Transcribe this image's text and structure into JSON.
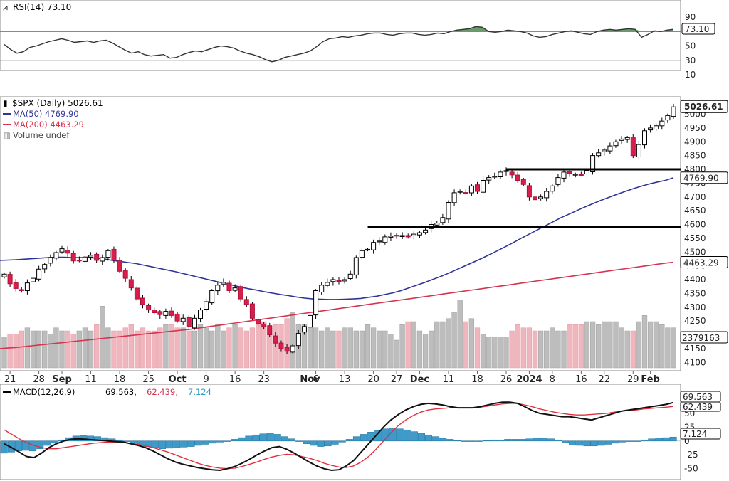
{
  "chart_data": [
    {
      "type": "line",
      "panel": "rsi",
      "legend": "RSI(14) 73.10",
      "last_value_label": "73.10",
      "ylim": [
        10,
        100
      ],
      "yticks": [
        "90",
        "70",
        "50",
        "30",
        "10"
      ],
      "reference_lines": [
        70,
        50,
        30
      ],
      "series": [
        {
          "name": "RSI(14)",
          "values": [
            52,
            45,
            40,
            42,
            48,
            50,
            53,
            56,
            58,
            60,
            58,
            55,
            56,
            57,
            55,
            57,
            58,
            54,
            49,
            44,
            40,
            42,
            38,
            36,
            37,
            38,
            33,
            34,
            38,
            41,
            43,
            42,
            45,
            48,
            50,
            49,
            47,
            43,
            40,
            38,
            35,
            31,
            28,
            30,
            34,
            36,
            38,
            40,
            43,
            49,
            56,
            60,
            61,
            63,
            62,
            64,
            65,
            67,
            68,
            68,
            66,
            65,
            67,
            68,
            68,
            66,
            65,
            66,
            68,
            67,
            70,
            72,
            73,
            74,
            77,
            76,
            70,
            69,
            70,
            72,
            71,
            70,
            68,
            64,
            62,
            63,
            66,
            68,
            70,
            71,
            69,
            67,
            66,
            70,
            72,
            73,
            72,
            73,
            74,
            73,
            62,
            66,
            71,
            70,
            72,
            73.1
          ]
        }
      ]
    },
    {
      "type": "candlestick",
      "panel": "price",
      "title": "$SPX (Daily) 5026.61",
      "last_value_label": "5026.61",
      "legend": [
        {
          "label": "MA(50) 4769.90",
          "color": "#2f3597"
        },
        {
          "label": "MA(200) 4463.29",
          "color": "#d4344f"
        },
        {
          "label": "Volume undef",
          "color": "#777777"
        }
      ],
      "ylim": [
        4080,
        5040
      ],
      "yticks": [
        "5000",
        "4950",
        "4900",
        "4850",
        "4800",
        "4750",
        "4700",
        "4650",
        "4600",
        "4550",
        "4500",
        "4450",
        "4400",
        "4350",
        "4300",
        "4250",
        "4200",
        "4150",
        "4100"
      ],
      "xticks": [
        {
          "label": "21",
          "bold": false,
          "index": 1
        },
        {
          "label": "28",
          "bold": false,
          "index": 6
        },
        {
          "label": "Sep",
          "bold": true,
          "index": 10
        },
        {
          "label": "11",
          "bold": false,
          "index": 15
        },
        {
          "label": "18",
          "bold": false,
          "index": 20
        },
        {
          "label": "25",
          "bold": false,
          "index": 25
        },
        {
          "label": "Oct",
          "bold": true,
          "index": 30
        },
        {
          "label": "9",
          "bold": false,
          "index": 35
        },
        {
          "label": "16",
          "bold": false,
          "index": 40
        },
        {
          "label": "23",
          "bold": false,
          "index": 45
        },
        {
          "label": "Nov",
          "bold": true,
          "index": 53
        },
        {
          "label": "6",
          "bold": false,
          "index": 54
        },
        {
          "label": "13",
          "bold": false,
          "index": 59
        },
        {
          "label": "20",
          "bold": false,
          "index": 64
        },
        {
          "label": "27",
          "bold": false,
          "index": 68
        },
        {
          "label": "Dec",
          "bold": true,
          "index": 72
        },
        {
          "label": "11",
          "bold": false,
          "index": 77
        },
        {
          "label": "18",
          "bold": false,
          "index": 82
        },
        {
          "label": "26",
          "bold": false,
          "index": 87
        },
        {
          "label": "2024",
          "bold": true,
          "index": 91
        },
        {
          "label": "8",
          "bold": false,
          "index": 95
        },
        {
          "label": "16",
          "bold": false,
          "index": 100
        },
        {
          "label": "22",
          "bold": false,
          "index": 104
        },
        {
          "label": "29",
          "bold": false,
          "index": 109
        },
        {
          "label": "Feb",
          "bold": true,
          "index": 112
        }
      ],
      "closes": [
        4420,
        4385,
        4368,
        4360,
        4388,
        4405,
        4438,
        4455,
        4480,
        4498,
        4512,
        4496,
        4468,
        4470,
        4482,
        4488,
        4470,
        4480,
        4505,
        4470,
        4430,
        4405,
        4370,
        4330,
        4310,
        4290,
        4280,
        4273,
        4285,
        4270,
        4250,
        4260,
        4230,
        4260,
        4290,
        4320,
        4360,
        4380,
        4390,
        4360,
        4370,
        4330,
        4310,
        4260,
        4240,
        4230,
        4200,
        4170,
        4150,
        4140,
        4160,
        4205,
        4230,
        4270,
        4360,
        4380,
        4390,
        4400,
        4395,
        4400,
        4420,
        4480,
        4505,
        4510,
        4535,
        4540,
        4555,
        4558,
        4560,
        4560,
        4555,
        4565,
        4570,
        4580,
        4600,
        4605,
        4625,
        4680,
        4715,
        4720,
        4715,
        4740,
        4720,
        4760,
        4770,
        4775,
        4790,
        4795,
        4780,
        4760,
        4745,
        4700,
        4690,
        4700,
        4720,
        4740,
        4770,
        4790,
        4785,
        4782,
        4780,
        4795,
        4850,
        4860,
        4870,
        4885,
        4900,
        4910,
        4915,
        4850,
        4890,
        4940,
        4950,
        4958,
        4975,
        4995,
        5026.61
      ],
      "ma50": [
        4470,
        4471,
        4472,
        4474,
        4476,
        4478,
        4480,
        4481,
        4481,
        4480,
        4480,
        4480,
        4478,
        4475,
        4470,
        4466,
        4462,
        4458,
        4452,
        4446,
        4440,
        4434,
        4428,
        4421,
        4414,
        4407,
        4400,
        4393,
        4386,
        4380,
        4373,
        4367,
        4362,
        4356,
        4351,
        4346,
        4342,
        4337,
        4333,
        4330,
        4329,
        4328,
        4328,
        4329,
        4330,
        4332,
        4336,
        4340,
        4346,
        4352,
        4360,
        4370,
        4380,
        4390,
        4401,
        4412,
        4424,
        4437,
        4450,
        4463,
        4476,
        4490,
        4504,
        4519,
        4534,
        4550,
        4565,
        4580,
        4595,
        4610,
        4625,
        4638,
        4651,
        4664,
        4676,
        4688,
        4699,
        4710,
        4720,
        4730,
        4739,
        4747,
        4754,
        4760,
        4769.9
      ],
      "ma50_start_index": 32,
      "ma200": [
        4150,
        4152,
        4154,
        4157,
        4160,
        4163,
        4166,
        4169,
        4172,
        4175,
        4178,
        4181,
        4184,
        4187,
        4190,
        4193,
        4196,
        4199,
        4202,
        4205,
        4208,
        4211,
        4214,
        4217,
        4220,
        4224,
        4228,
        4232,
        4236,
        4240,
        4244,
        4248,
        4252,
        4256,
        4260,
        4264,
        4268,
        4272,
        4276,
        4280,
        4284,
        4288,
        4292,
        4296,
        4300,
        4304,
        4308,
        4312,
        4316,
        4320,
        4324,
        4328,
        4332,
        4336,
        4340,
        4344,
        4348,
        4352,
        4356,
        4360,
        4364,
        4368,
        4372,
        4376,
        4380,
        4384,
        4388,
        4392,
        4396,
        4400,
        4404,
        4408,
        4412,
        4416,
        4420,
        4424,
        4428,
        4432,
        4436,
        4440,
        4444,
        4448,
        4452,
        4456,
        4460,
        4463.29
      ],
      "ma200_start_index": 31,
      "horizontal_lines": [
        {
          "value": 4800,
          "from_index": 87,
          "to_index": 116
        },
        {
          "value": 4590,
          "from_index": 63,
          "to_index": 116
        }
      ],
      "volume_label": "2379163",
      "volume": [
        10,
        11,
        11,
        12,
        13,
        12,
        12,
        12,
        11,
        13,
        12,
        12,
        11,
        12,
        13,
        12,
        14,
        20,
        13,
        12,
        12,
        13,
        14,
        12,
        13,
        12,
        12,
        13,
        14,
        14,
        13,
        13,
        12,
        12,
        14,
        13,
        12,
        14,
        12,
        13,
        14,
        13,
        12,
        13,
        14,
        15,
        13,
        14,
        14,
        16,
        18,
        14,
        14,
        15,
        13,
        12,
        13,
        12,
        12,
        13,
        13,
        12,
        12,
        14,
        13,
        12,
        12,
        11,
        9,
        14,
        15,
        15,
        12,
        11,
        12,
        15,
        15,
        16,
        18,
        22,
        15,
        16,
        13,
        11,
        10,
        10,
        10,
        10,
        12,
        14,
        13,
        13,
        12,
        12,
        12,
        13,
        12,
        12,
        14,
        14,
        14,
        15,
        15,
        14,
        15,
        15,
        15,
        13,
        12,
        12,
        15,
        17,
        15,
        15,
        14,
        13,
        13
      ]
    },
    {
      "type": "line",
      "panel": "macd",
      "legend": [
        {
          "label": "MACD(12,26,9)",
          "color": "#000000"
        },
        {
          "label": "69.563,",
          "color": "#000000"
        },
        {
          "label": "62.439,",
          "color": "#d4344f"
        },
        {
          "label": "7.124",
          "color": "#2a9ac2"
        }
      ],
      "last_value_labels": [
        "69.563",
        "62.439",
        "7.124"
      ],
      "ylim": [
        -62,
        82
      ],
      "yticks": [
        "50",
        "25",
        "0",
        "-25",
        "-50"
      ],
      "series": [
        {
          "name": "MACD(12,26,9)",
          "values": [
            -5,
            -12,
            -20,
            -28,
            -30,
            -22,
            -12,
            -5,
            0,
            3,
            4,
            3,
            2,
            1,
            0,
            -1,
            -2,
            -5,
            -8,
            -12,
            -18,
            -25,
            -32,
            -38,
            -42,
            -45,
            -48,
            -50,
            -52,
            -53,
            -50,
            -46,
            -40,
            -33,
            -25,
            -18,
            -12,
            -10,
            -15,
            -22,
            -30,
            -38,
            -45,
            -50,
            -53,
            -52,
            -45,
            -35,
            -20,
            -5,
            10,
            25,
            38,
            48,
            56,
            62,
            66,
            68,
            67,
            65,
            62,
            60,
            60,
            60,
            62,
            65,
            68,
            70,
            70,
            68,
            62,
            55,
            50,
            48,
            46,
            44,
            44,
            42,
            40,
            38,
            42,
            46,
            50,
            54,
            56,
            58,
            60,
            62,
            64,
            66,
            69.563
          ]
        },
        {
          "name": "Signal",
          "values": [
            20,
            12,
            4,
            -3,
            -8,
            -12,
            -14,
            -14,
            -12,
            -10,
            -8,
            -6,
            -4,
            -3,
            -2,
            -2,
            -3,
            -4,
            -6,
            -9,
            -12,
            -16,
            -20,
            -25,
            -30,
            -35,
            -40,
            -44,
            -47,
            -49,
            -50,
            -49,
            -46,
            -42,
            -38,
            -33,
            -29,
            -26,
            -24,
            -25,
            -28,
            -31,
            -35,
            -40,
            -44,
            -47,
            -48,
            -45,
            -38,
            -28,
            -15,
            0,
            15,
            28,
            38,
            46,
            52,
            56,
            58,
            59,
            60,
            60,
            60,
            60,
            61,
            63,
            65,
            67,
            68,
            68,
            65,
            62,
            58,
            55,
            52,
            50,
            48,
            47,
            47,
            48,
            49,
            50,
            52,
            54,
            55,
            56,
            58,
            59,
            60,
            61,
            62.439
          ]
        },
        {
          "name": "Histogram",
          "values": [
            -22,
            -20,
            -18,
            -17,
            -18,
            -14,
            -8,
            -4,
            2,
            6,
            9,
            10,
            9,
            8,
            6,
            4,
            2,
            -1,
            -4,
            -7,
            -10,
            -12,
            -14,
            -13,
            -12,
            -11,
            -10,
            -8,
            -6,
            -4,
            -2,
            0,
            3,
            6,
            9,
            11,
            13,
            14,
            12,
            8,
            4,
            -1,
            -5,
            -8,
            -10,
            -9,
            -6,
            -2,
            3,
            8,
            12,
            16,
            19,
            22,
            23,
            22,
            20,
            17,
            14,
            11,
            8,
            5,
            3,
            1,
            0,
            0,
            0,
            1,
            2,
            2,
            3,
            3,
            3,
            4,
            5,
            5,
            4,
            2,
            -3,
            -7,
            -8,
            -9,
            -9,
            -8,
            -6,
            -4,
            -2,
            -1,
            0,
            2,
            4,
            5,
            6,
            7.124
          ]
        }
      ]
    }
  ]
}
